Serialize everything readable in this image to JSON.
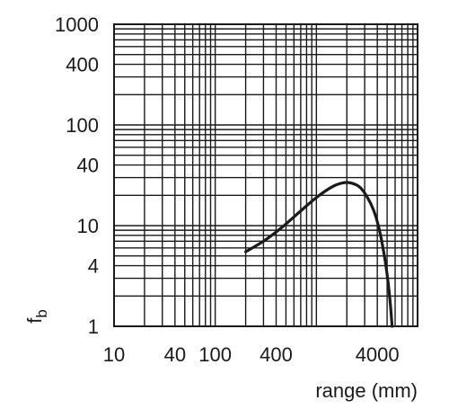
{
  "chart_data": {
    "type": "line",
    "title": "",
    "xlabel": "range (mm)",
    "ylabel_main": "f",
    "ylabel_sub": "b",
    "xscale": "log",
    "yscale": "log",
    "xlim": [
      10,
      10000
    ],
    "ylim": [
      1,
      1000
    ],
    "xticks": [
      {
        "value": 10,
        "label": "10"
      },
      {
        "value": 40,
        "label": "40"
      },
      {
        "value": 100,
        "label": "100"
      },
      {
        "value": 400,
        "label": "400"
      },
      {
        "value": 4000,
        "label": "4000"
      }
    ],
    "yticks": [
      {
        "value": 1,
        "label": "1"
      },
      {
        "value": 4,
        "label": "4"
      },
      {
        "value": 10,
        "label": "10"
      },
      {
        "value": 40,
        "label": "40"
      },
      {
        "value": 100,
        "label": "100"
      },
      {
        "value": 400,
        "label": "400"
      },
      {
        "value": 1000,
        "label": "1000"
      }
    ],
    "grid": true,
    "grid_values_x": [
      20,
      30,
      40,
      50,
      60,
      70,
      80,
      90,
      100,
      200,
      300,
      400,
      500,
      600,
      700,
      800,
      900,
      1000,
      2000,
      3000,
      4000,
      5000,
      6000,
      7000,
      8000,
      9000
    ],
    "grid_values_y": [
      2,
      3,
      4,
      5,
      6,
      7,
      8,
      9,
      10,
      20,
      30,
      40,
      50,
      60,
      70,
      80,
      90,
      100,
      200,
      300,
      400,
      500,
      600,
      700,
      800,
      900
    ],
    "series": [
      {
        "x": [
          200,
          300,
          450,
          700,
          1000,
          1400,
          1800,
          2200,
          2700,
          3200,
          3700,
          4200,
          4700,
          5100,
          5400,
          5600
        ],
        "y": [
          5.5,
          7.0,
          9.5,
          14.0,
          19.0,
          24.0,
          26.5,
          26.5,
          24.0,
          19.0,
          14.0,
          9.0,
          5.0,
          2.8,
          1.6,
          1.0
        ]
      }
    ],
    "colors": {
      "line": "#1a1a1a",
      "grid": "#1a1a1a",
      "background": "#ffffff"
    }
  }
}
